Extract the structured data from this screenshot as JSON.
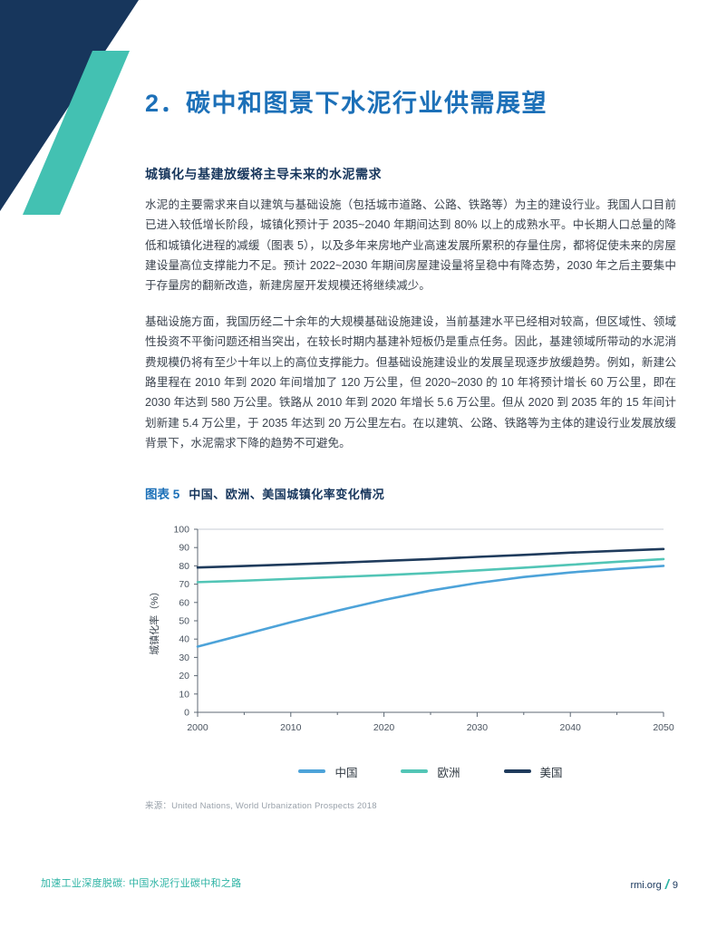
{
  "page": {
    "heading": "2．碳中和图景下水泥行业供需展望",
    "section_title": "城镇化与基建放缓将主导未来的水泥需求",
    "paragraphs": [
      "水泥的主要需求来自以建筑与基础设施（包括城市道路、公路、铁路等）为主的建设行业。我国人口目前已进入较低增长阶段，城镇化预计于 2035~2040 年期间达到 80% 以上的成熟水平。中长期人口总量的降低和城镇化进程的减缓（图表 5），以及多年来房地产业高速发展所累积的存量住房，都将促使未来的房屋建设量高位支撑能力不足。预计 2022~2030 年期间房屋建设量将呈稳中有降态势，2030 年之后主要集中于存量房的翻新改造，新建房屋开发规模还将继续减少。",
      "基础设施方面，我国历经二十余年的大规模基础设施建设，当前基建水平已经相对较高，但区域性、领域性投资不平衡问题还相当突出，在较长时期内基建补短板仍是重点任务。因此，基建领域所带动的水泥消费规模仍将有至少十年以上的高位支撑能力。但基础设施建设业的发展呈现逐步放缓趋势。例如，新建公路里程在 2010 年到 2020 年间增加了 120 万公里，但 2020~2030 的 10 年将预计增长 60 万公里，即在 2030 年达到 580 万公里。铁路从 2010 年到 2020 年增长 5.6 万公里。但从 2020 到 2035 年的 15 年间计划新建 5.4 万公里，于 2035 年达到 20 万公里左右。在以建筑、公路、铁路等为主体的建设行业发展放缓背景下，水泥需求下降的趋势不可避免。"
    ],
    "figure": {
      "label": "图表 5",
      "title": "中国、欧洲、美国城镇化率变化情况",
      "source": "来源：United Nations, World Urbanization Prospects 2018"
    },
    "footer": {
      "left": "加速工业深度脱碳: 中国水泥行业碳中和之路",
      "site": "rmi.org",
      "separator": "/",
      "page_number": "9"
    }
  },
  "colors": {
    "accent_blue": "#1c70b8",
    "navy": "#17365c",
    "teal": "#43c1b2",
    "china_line": "#4da3d9",
    "europe_line": "#52c5b6",
    "us_line": "#1f3b5c"
  },
  "chart_data": {
    "type": "line",
    "x": [
      2000,
      2005,
      2010,
      2015,
      2020,
      2025,
      2030,
      2035,
      2040,
      2045,
      2050
    ],
    "series": [
      {
        "name": "中国",
        "color": "#4da3d9",
        "values": [
          35.9,
          42.5,
          49.2,
          55.5,
          61.4,
          66.5,
          70.6,
          73.9,
          76.4,
          78.3,
          80.0
        ]
      },
      {
        "name": "欧洲",
        "color": "#52c5b6",
        "values": [
          71.1,
          71.9,
          72.9,
          73.9,
          74.9,
          76.1,
          77.5,
          79.0,
          80.6,
          82.2,
          83.7
        ]
      },
      {
        "name": "美国",
        "color": "#1f3b5c",
        "values": [
          79.1,
          79.9,
          80.8,
          81.7,
          82.7,
          83.7,
          84.9,
          86.0,
          87.2,
          88.2,
          89.2
        ]
      }
    ],
    "title": "中国、欧洲、美国城镇化率变化情况",
    "xlabel": "",
    "ylabel": "城镇化率（%）",
    "ylim": [
      0,
      100
    ],
    "ytick_step": 10,
    "xticks": [
      2000,
      2010,
      2020,
      2030,
      2040,
      2050
    ],
    "grid": false,
    "legend_position": "bottom"
  }
}
